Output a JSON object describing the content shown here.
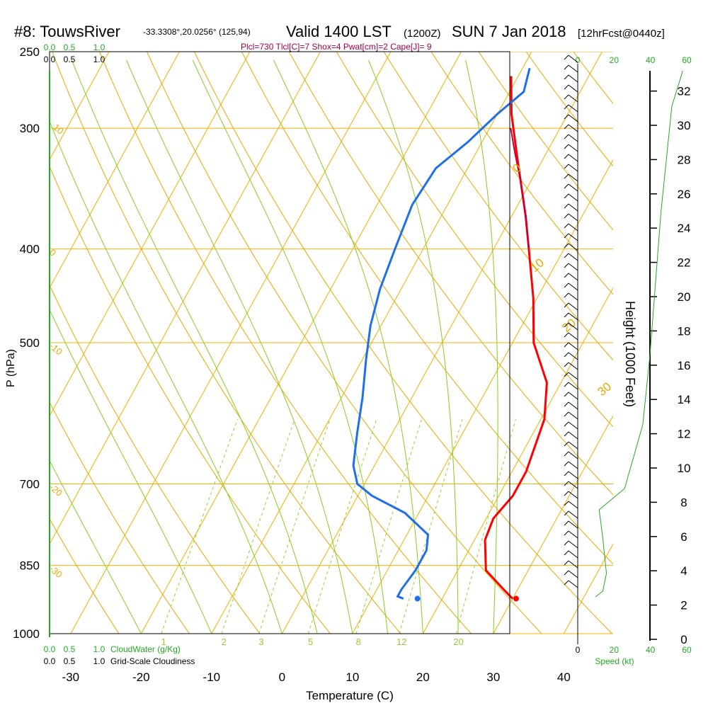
{
  "header": {
    "station": "#8: TouwsRiver",
    "coords": "-33.3308°,20.0256° (125,94)",
    "valid_main": "Valid 1400 LST",
    "valid_z": "(1200Z)",
    "date": "SUN 7 Jan 2018",
    "forecast": "[12hrFcst@0440z]",
    "params": "Plcl=730 Tlcl[C]=7 Shox=4 Pwat[cm]=2 Cape[J]= 9"
  },
  "axes": {
    "y_label": "P (hPa)",
    "x_label": "Temperature (C)",
    "height_label": "Height (1000 Feet)",
    "speed_label": "Speed (kt)"
  },
  "scales": {
    "cloud_top": [
      "0.0",
      "0.5",
      "1.0"
    ],
    "cloud_top_values": [
      0.0,
      0.5,
      1.0
    ],
    "cloud_bottom_title": "CloudWater (g/Kg)",
    "cloudiness_title": "Grid-Scale Cloudiness",
    "speed_ticks": [
      "0",
      "20",
      "40",
      "60"
    ],
    "speed_values": [
      0,
      20,
      40,
      60
    ]
  },
  "colors": {
    "temperature": "#ff0000",
    "dewpoint": "#1e6fe8",
    "parcel": "#c00040",
    "isotherm": "#f0b000",
    "dry_adiabat": "#e8a800",
    "moist_adiabat": "#88cc22",
    "mixing_ratio": "#99cc33",
    "speed": "#22aa22",
    "params_text": "#a0004a"
  },
  "chart_data": {
    "type": "line",
    "ylog": true,
    "pressure_ticks": [
      "250",
      "300",
      "400",
      "500",
      "700",
      "850",
      "1000"
    ],
    "pressure_values": [
      250,
      300,
      400,
      500,
      700,
      850,
      1000
    ],
    "temp_ticks": [
      "-30",
      "-20",
      "-10",
      "0",
      "10",
      "20",
      "30",
      "40"
    ],
    "temp_values": [
      -30,
      -20,
      -10,
      0,
      10,
      20,
      30,
      40
    ],
    "temp_range": [
      -33,
      47
    ],
    "pressure_range": [
      1000,
      250
    ],
    "height_ticks": [
      "0",
      "2",
      "4",
      "6",
      "8",
      "10",
      "12",
      "14",
      "16",
      "18",
      "20",
      "22",
      "24",
      "26",
      "28",
      "30",
      "32"
    ],
    "height_values": [
      0,
      2,
      4,
      6,
      8,
      10,
      12,
      14,
      16,
      18,
      20,
      22,
      24,
      26,
      28,
      30,
      32
    ],
    "dry_adiabat_labels": [
      "10",
      "0",
      "-10",
      "-20",
      "-30",
      "0",
      "10",
      "20",
      "30"
    ],
    "mixing_ratio_labels": [
      "1",
      "2",
      "3",
      "5",
      "8",
      "12",
      "20"
    ],
    "mixing_ratio_values": [
      1,
      2,
      3,
      5,
      8,
      12,
      20
    ],
    "series": [
      {
        "key": "temperature",
        "points": [
          [
            30.0,
            920
          ],
          [
            28.0,
            900
          ],
          [
            24.0,
            860
          ],
          [
            21.5,
            800
          ],
          [
            21.0,
            760
          ],
          [
            22.0,
            720
          ],
          [
            22.0,
            680
          ],
          [
            20.5,
            600
          ],
          [
            18.0,
            550
          ],
          [
            13.0,
            500
          ],
          [
            9.5,
            450
          ],
          [
            5.0,
            400
          ],
          [
            2.0,
            370
          ],
          [
            -4.0,
            320
          ],
          [
            -8.0,
            290
          ],
          [
            -11.0,
            265
          ]
        ]
      },
      {
        "key": "dewpoint",
        "points": [
          [
            14.5,
            920
          ],
          [
            13.5,
            915
          ],
          [
            13.5,
            900
          ],
          [
            14.0,
            860
          ],
          [
            14.0,
            820
          ],
          [
            13.0,
            790
          ],
          [
            8.0,
            750
          ],
          [
            2.0,
            720
          ],
          [
            -1.0,
            700
          ],
          [
            -3.0,
            670
          ],
          [
            -5.0,
            620
          ],
          [
            -7.0,
            570
          ],
          [
            -9.5,
            520
          ],
          [
            -11.5,
            480
          ],
          [
            -13.0,
            440
          ],
          [
            -14.0,
            400
          ],
          [
            -15.0,
            360
          ],
          [
            -14.5,
            330
          ],
          [
            -12.0,
            310
          ],
          [
            -10.0,
            290
          ],
          [
            -8.0,
            275
          ],
          [
            -9.0,
            260
          ]
        ]
      },
      {
        "key": "parcel",
        "points": [
          [
            5.0,
            400
          ],
          [
            2.0,
            370
          ],
          [
            -1.5,
            340
          ],
          [
            -4.5,
            318
          ],
          [
            -7.0,
            300
          ]
        ]
      }
    ],
    "surface_points": [
      {
        "key": "temperature",
        "t": 31.5,
        "p": 920
      },
      {
        "key": "dewpoint",
        "t": 17.5,
        "p": 920
      }
    ]
  }
}
